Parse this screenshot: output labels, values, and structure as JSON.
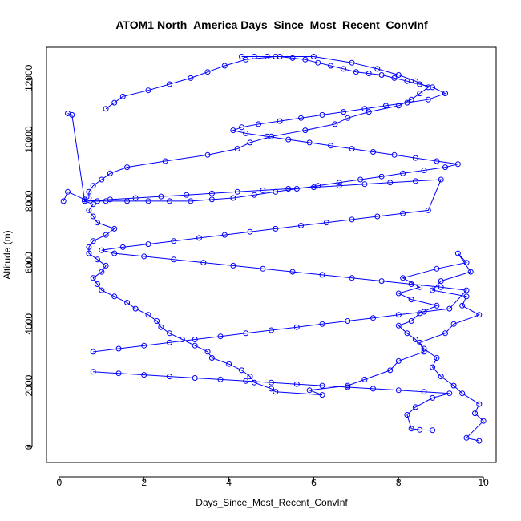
{
  "chart_data": {
    "type": "scatter",
    "title": "ATOM1 North_America Days_Since_Most_Recent_ConvInf",
    "xlabel": "Days_Since_Most_Recent_ConvInf",
    "ylabel": "Altitude (m)",
    "xlim": [
      -0.3,
      10.3
    ],
    "ylim": [
      -500,
      13000
    ],
    "x_ticks": [
      0,
      2,
      4,
      6,
      8,
      10
    ],
    "y_ticks": [
      0,
      2000,
      4000,
      6000,
      8000,
      10000,
      12000
    ],
    "x_tick_labels": [
      "0",
      "2",
      "4",
      "6",
      "8",
      "10"
    ],
    "y_tick_labels": [
      "0",
      "2000",
      "4000",
      "6000",
      "8000",
      "10000",
      "12000"
    ],
    "grid": false,
    "style": {
      "color": "#0000ff",
      "marker": "open-circle",
      "connected": true
    },
    "series": [
      {
        "x": [
          9.9,
          9.6,
          10.0,
          9.8,
          9.9,
          9.5,
          9.3,
          9.0,
          8.8,
          8.9,
          8.6,
          8.4,
          8.2,
          8.0,
          8.3,
          8.5,
          8.9,
          8.3,
          8.0,
          8.5,
          8.1,
          8.9,
          9.6,
          9.4,
          9.7,
          9.0,
          8.8,
          9.6,
          9.5,
          9.9,
          9.3,
          9.1,
          8.5,
          8.6,
          8.0,
          7.8,
          7.2,
          6.8,
          5.9,
          6.2,
          5.1,
          5.0,
          4.6,
          4.5,
          4.3,
          4.0,
          3.6,
          3.5,
          3.2,
          2.9,
          2.6,
          2.4,
          2.3,
          2.1,
          1.8,
          1.6,
          1.3,
          1.0,
          0.9,
          0.8,
          1.0,
          1.1,
          0.9,
          0.7,
          0.7,
          0.8,
          1.1,
          1.3,
          0.9,
          0.8,
          0.7,
          0.8,
          0.6,
          0.7,
          0.7,
          0.8,
          1.0,
          1.2,
          1.6,
          2.5,
          3.5,
          4.2,
          4.5,
          5.0,
          5.8,
          6.5,
          6.8,
          7.3,
          8.0,
          8.3,
          8.5,
          8.7,
          8.4,
          8.0,
          7.5,
          6.9,
          6.0,
          5.1,
          4.4,
          3.9,
          3.5,
          3.1,
          2.6,
          2.1,
          1.5,
          1.3,
          1.1
        ],
        "y": [
          200,
          300,
          850,
          1100,
          1400,
          1750,
          2000,
          2300,
          2600,
          2900,
          3200,
          3500,
          3700,
          3950,
          4100,
          4350,
          4600,
          4800,
          5000,
          5200,
          5500,
          5800,
          6000,
          6300,
          5700,
          5400,
          5100,
          4900,
          4600,
          4300,
          4000,
          3700,
          3400,
          3100,
          2800,
          2500,
          2200,
          2000,
          1850,
          1700,
          1800,
          1900,
          2100,
          2300,
          2500,
          2700,
          2900,
          3100,
          3300,
          3500,
          3700,
          3900,
          4100,
          4300,
          4500,
          4700,
          4900,
          5100,
          5300,
          5500,
          5700,
          5900,
          6100,
          6300,
          6500,
          6700,
          6900,
          7100,
          7300,
          7500,
          7700,
          7900,
          8000,
          8100,
          8300,
          8500,
          8700,
          8900,
          9100,
          9300,
          9500,
          9700,
          9900,
          10100,
          10300,
          10500,
          10700,
          10900,
          11100,
          11300,
          11500,
          11700,
          11900,
          12100,
          12300,
          12500,
          12700,
          12700,
          12600,
          12400,
          12200,
          12000,
          11800,
          11600,
          11400,
          11200,
          11000
        ]
      },
      {
        "x": [
          4.3,
          4.6,
          4.9,
          5.2,
          5.5,
          5.8,
          6.1,
          6.4,
          6.7,
          7.0,
          7.3,
          7.6,
          7.9,
          8.2,
          8.5,
          8.8,
          9.1,
          8.7,
          8.2,
          7.7,
          7.2,
          6.7,
          6.2,
          5.7,
          5.2,
          4.7,
          4.3,
          4.1,
          4.4,
          4.9,
          5.4,
          5.9,
          6.4,
          6.9,
          7.4,
          7.9,
          8.4,
          8.9,
          9.4,
          9.1,
          8.6,
          8.1,
          7.6,
          7.1,
          6.6,
          6.1,
          5.6,
          5.1,
          4.6,
          4.1,
          3.6,
          3.1,
          2.6,
          2.1,
          1.6,
          1.1,
          0.6,
          0.3,
          0.2
        ],
        "y": [
          12700,
          12700,
          12700,
          12700,
          12650,
          12600,
          12500,
          12400,
          12300,
          12200,
          12150,
          12100,
          12000,
          11900,
          11800,
          11700,
          11500,
          11300,
          11200,
          11100,
          11000,
          10900,
          10800,
          10700,
          10600,
          10500,
          10400,
          10300,
          10200,
          10100,
          10000,
          9900,
          9800,
          9700,
          9600,
          9500,
          9400,
          9300,
          9200,
          9100,
          9000,
          8900,
          8800,
          8700,
          8600,
          8500,
          8400,
          8300,
          8200,
          8100,
          8050,
          8000,
          8000,
          8000,
          8000,
          8000,
          8000,
          10800,
          10850
        ]
      },
      {
        "x": [
          0.1,
          0.2,
          0.6,
          0.9,
          1.2,
          1.8,
          2.4,
          3.0,
          3.6,
          4.2,
          4.8,
          5.4,
          6.0,
          6.6,
          7.2,
          7.8,
          8.4,
          9.0,
          8.7,
          8.1,
          7.5,
          6.9,
          6.3,
          5.7,
          5.1,
          4.5,
          3.9,
          3.3,
          2.7,
          2.1,
          1.5,
          1.0,
          1.3,
          2.0,
          2.7,
          3.4,
          4.1,
          4.8,
          5.5,
          6.2,
          6.9,
          7.6,
          8.3,
          9.0,
          9.6,
          9.2,
          8.6,
          8.0,
          7.4,
          6.8,
          6.2,
          5.6,
          5.0,
          4.4,
          3.8,
          3.2,
          2.6,
          2.0,
          1.4,
          0.8
        ],
        "y": [
          8000,
          8300,
          8050,
          8000,
          8050,
          8100,
          8150,
          8200,
          8250,
          8300,
          8350,
          8400,
          8450,
          8500,
          8550,
          8600,
          8650,
          8700,
          7700,
          7600,
          7500,
          7400,
          7300,
          7200,
          7100,
          7000,
          6900,
          6800,
          6700,
          6600,
          6500,
          6400,
          6300,
          6200,
          6100,
          6000,
          5900,
          5800,
          5700,
          5600,
          5500,
          5400,
          5300,
          5200,
          5100,
          4500,
          4400,
          4300,
          4200,
          4100,
          4000,
          3900,
          3800,
          3700,
          3600,
          3500,
          3400,
          3300,
          3200,
          3100
        ]
      },
      {
        "x": [
          0.8,
          1.4,
          2.0,
          2.6,
          3.2,
          3.8,
          4.4,
          5.0,
          5.6,
          6.2,
          6.8,
          7.4,
          8.0,
          8.6,
          9.2,
          8.8,
          8.4,
          8.2,
          8.3,
          8.5,
          8.8
        ],
        "y": [
          2450,
          2400,
          2350,
          2300,
          2250,
          2200,
          2150,
          2100,
          2050,
          2000,
          1950,
          1900,
          1850,
          1800,
          1750,
          1600,
          1300,
          1050,
          600,
          560,
          550
        ]
      }
    ]
  }
}
